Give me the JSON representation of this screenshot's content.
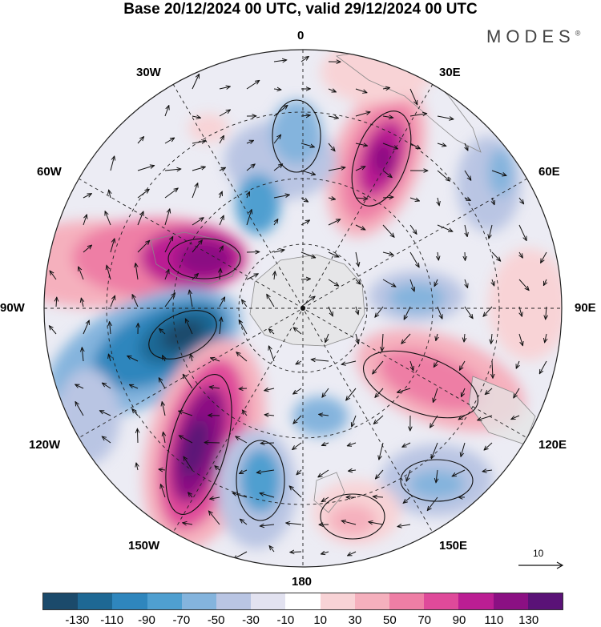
{
  "title": "Base 20/12/2024 00 UTC, valid 29/12/2024 00 UTC",
  "brand": "MODES",
  "brand_mark": "®",
  "longitude_labels": {
    "lon_0": "0",
    "lon_30e": "30E",
    "lon_60e": "60E",
    "lon_90e": "90E",
    "lon_120e": "120E",
    "lon_150e": "150E",
    "lon_180": "180",
    "lon_150w": "150W",
    "lon_120w": "120W",
    "lon_90w": "90W",
    "lon_60w": "60W",
    "lon_30w": "30W"
  },
  "vector_reference": {
    "label": "10"
  },
  "colorbar": {
    "colors": [
      "#1b4a6b",
      "#1e6894",
      "#2f86bd",
      "#4f9fd0",
      "#84b4dd",
      "#b9c5e3",
      "#e2e2f0",
      "#ffffff",
      "#f8d3d6",
      "#f5b0bd",
      "#ee7ea5",
      "#df4a9a",
      "#bb1e93",
      "#8b1083",
      "#5a1277"
    ],
    "labels": [
      "-130",
      "-110",
      "-90",
      "-70",
      "-50",
      "-30",
      "-10",
      "10",
      "30",
      "50",
      "70",
      "90",
      "110",
      "130"
    ]
  },
  "map": {
    "projection": "south polar stereographic",
    "field_colors": {
      "neutral": "#ececf4",
      "land": "#e4e4e4"
    }
  }
}
